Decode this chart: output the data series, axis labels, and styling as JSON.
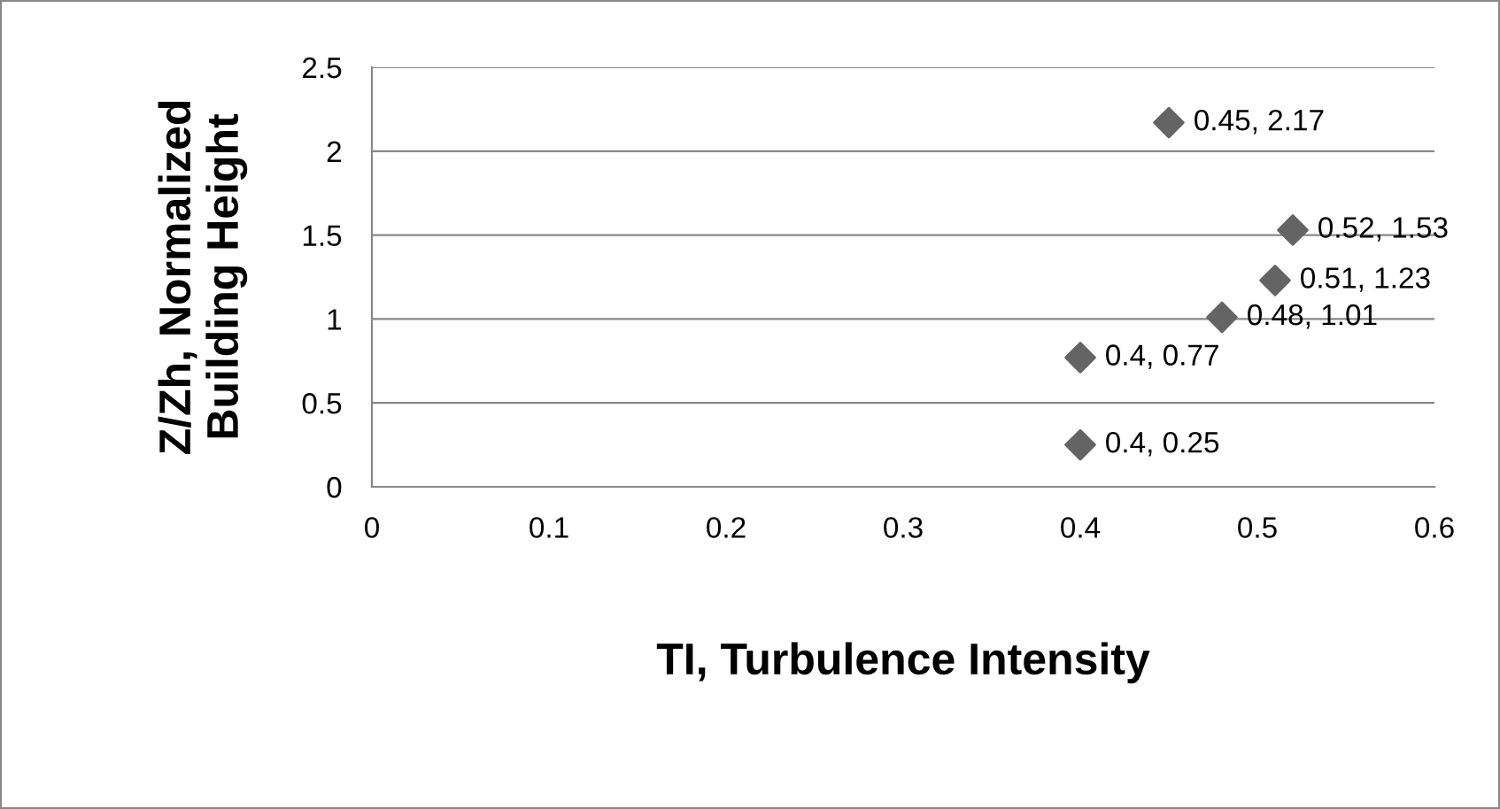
{
  "chart_data": {
    "type": "scatter",
    "xlabel": "TI, Turbulence Intensity",
    "ylabel": "Z/Zh, Normalized\nBuilding Height",
    "x": [
      0.45,
      0.52,
      0.51,
      0.48,
      0.4,
      0.4
    ],
    "values": [
      2.17,
      1.53,
      1.23,
      1.01,
      0.77,
      0.25
    ],
    "value_labels": [
      "0.45, 2.17",
      "0.52, 1.53",
      "0.51, 1.23",
      "0.48, 1.01",
      "0.4, 0.77",
      "0.4, 0.25"
    ],
    "color": "#646464",
    "marker": "diamond",
    "xlim": [
      0,
      0.6
    ],
    "xticks": [
      0,
      0.1,
      0.2,
      0.3,
      0.4,
      0.5,
      0.6
    ],
    "ylim": [
      0,
      2.5
    ],
    "yticks": [
      0,
      0.5,
      1,
      1.5,
      2,
      2.5
    ],
    "grid": "y",
    "legend": false
  }
}
